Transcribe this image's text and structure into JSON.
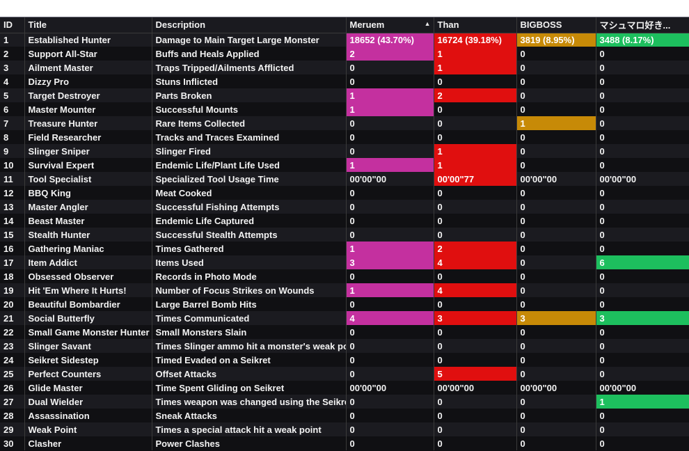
{
  "columns": [
    {
      "key": "id",
      "label": "ID"
    },
    {
      "key": "title",
      "label": "Title"
    },
    {
      "key": "desc",
      "label": "Description"
    },
    {
      "key": "p1",
      "label": "Meruem",
      "sorted": "asc"
    },
    {
      "key": "p2",
      "label": "Than"
    },
    {
      "key": "p3",
      "label": "BIGBOSS"
    },
    {
      "key": "p4",
      "label": "マシュマロ好き..."
    }
  ],
  "player_colors": {
    "p1": "#c4309f",
    "p2": "#e00f0f",
    "p3": "#c78a07",
    "p4": "#1dbf5e"
  },
  "rows": [
    {
      "id": "1",
      "title": "Established Hunter",
      "desc": "Damage to Main Target Large Monster",
      "p1": "18652 (43.70%)",
      "p2": "16724 (39.18%)",
      "p3": "3819 (8.95%)",
      "p4": "3488 (8.17%)",
      "hl": [
        "p1",
        "p2",
        "p3",
        "p4"
      ]
    },
    {
      "id": "2",
      "title": "Support All-Star",
      "desc": "Buffs and Heals Applied",
      "p1": "2",
      "p2": "1",
      "p3": "0",
      "p4": "0",
      "hl": [
        "p1",
        "p2"
      ]
    },
    {
      "id": "3",
      "title": "Ailment Master",
      "desc": "Traps Tripped/Ailments Afflicted",
      "p1": "0",
      "p2": "1",
      "p3": "0",
      "p4": "0",
      "hl": [
        "p2"
      ]
    },
    {
      "id": "4",
      "title": "Dizzy Pro",
      "desc": "Stuns Inflicted",
      "p1": "0",
      "p2": "0",
      "p3": "0",
      "p4": "0",
      "hl": []
    },
    {
      "id": "5",
      "title": "Target Destroyer",
      "desc": "Parts Broken",
      "p1": "1",
      "p2": "2",
      "p3": "0",
      "p4": "0",
      "hl": [
        "p1",
        "p2"
      ]
    },
    {
      "id": "6",
      "title": "Master Mounter",
      "desc": "Successful Mounts",
      "p1": "1",
      "p2": "0",
      "p3": "0",
      "p4": "0",
      "hl": [
        "p1"
      ]
    },
    {
      "id": "7",
      "title": "Treasure Hunter",
      "desc": "Rare Items Collected",
      "p1": "0",
      "p2": "0",
      "p3": "1",
      "p4": "0",
      "hl": [
        "p3"
      ]
    },
    {
      "id": "8",
      "title": "Field Researcher",
      "desc": "Tracks and Traces Examined",
      "p1": "0",
      "p2": "0",
      "p3": "0",
      "p4": "0",
      "hl": []
    },
    {
      "id": "9",
      "title": "Slinger Sniper",
      "desc": "Slinger Fired",
      "p1": "0",
      "p2": "1",
      "p3": "0",
      "p4": "0",
      "hl": [
        "p2"
      ]
    },
    {
      "id": "10",
      "title": "Survival Expert",
      "desc": "Endemic Life/Plant Life Used",
      "p1": "1",
      "p2": "1",
      "p3": "0",
      "p4": "0",
      "hl": [
        "p1",
        "p2"
      ]
    },
    {
      "id": "11",
      "title": "Tool Specialist",
      "desc": "Specialized Tool Usage Time",
      "p1": "00'00\"00",
      "p2": "00'00\"77",
      "p3": "00'00\"00",
      "p4": "00'00\"00",
      "hl": [
        "p2"
      ]
    },
    {
      "id": "12",
      "title": "BBQ King",
      "desc": "Meat Cooked",
      "p1": "0",
      "p2": "0",
      "p3": "0",
      "p4": "0",
      "hl": []
    },
    {
      "id": "13",
      "title": "Master Angler",
      "desc": "Successful Fishing Attempts",
      "p1": "0",
      "p2": "0",
      "p3": "0",
      "p4": "0",
      "hl": []
    },
    {
      "id": "14",
      "title": "Beast Master",
      "desc": "Endemic Life Captured",
      "p1": "0",
      "p2": "0",
      "p3": "0",
      "p4": "0",
      "hl": []
    },
    {
      "id": "15",
      "title": "Stealth Hunter",
      "desc": "Successful Stealth Attempts",
      "p1": "0",
      "p2": "0",
      "p3": "0",
      "p4": "0",
      "hl": []
    },
    {
      "id": "16",
      "title": "Gathering Maniac",
      "desc": "Times Gathered",
      "p1": "1",
      "p2": "2",
      "p3": "0",
      "p4": "0",
      "hl": [
        "p1",
        "p2"
      ]
    },
    {
      "id": "17",
      "title": "Item Addict",
      "desc": "Items Used",
      "p1": "3",
      "p2": "4",
      "p3": "0",
      "p4": "6",
      "hl": [
        "p1",
        "p2",
        "p4"
      ]
    },
    {
      "id": "18",
      "title": "Obsessed Observer",
      "desc": "Records in Photo Mode",
      "p1": "0",
      "p2": "0",
      "p3": "0",
      "p4": "0",
      "hl": []
    },
    {
      "id": "19",
      "title": "Hit 'Em Where It Hurts!",
      "desc": "Number of Focus Strikes on Wounds",
      "p1": "1",
      "p2": "4",
      "p3": "0",
      "p4": "0",
      "hl": [
        "p1",
        "p2"
      ]
    },
    {
      "id": "20",
      "title": "Beautiful Bombardier",
      "desc": "Large Barrel Bomb Hits",
      "p1": "0",
      "p2": "0",
      "p3": "0",
      "p4": "0",
      "hl": []
    },
    {
      "id": "21",
      "title": "Social Butterfly",
      "desc": "Times Communicated",
      "p1": "4",
      "p2": "3",
      "p3": "3",
      "p4": "3",
      "hl": [
        "p1",
        "p2",
        "p3",
        "p4"
      ]
    },
    {
      "id": "22",
      "title": "Small Game Monster Hunter",
      "desc": "Small Monsters Slain",
      "p1": "0",
      "p2": "0",
      "p3": "0",
      "p4": "0",
      "hl": []
    },
    {
      "id": "23",
      "title": "Slinger Savant",
      "desc": "Times Slinger ammo hit a monster's weak point",
      "p1": "0",
      "p2": "0",
      "p3": "0",
      "p4": "0",
      "hl": []
    },
    {
      "id": "24",
      "title": "Seikret Sidestep",
      "desc": "Timed Evaded on a Seikret",
      "p1": "0",
      "p2": "0",
      "p3": "0",
      "p4": "0",
      "hl": []
    },
    {
      "id": "25",
      "title": "Perfect Counters",
      "desc": "Offset Attacks",
      "p1": "0",
      "p2": "5",
      "p3": "0",
      "p4": "0",
      "hl": [
        "p2"
      ]
    },
    {
      "id": "26",
      "title": "Glide Master",
      "desc": "Time Spent Gliding on Seikret",
      "p1": "00'00\"00",
      "p2": "00'00\"00",
      "p3": "00'00\"00",
      "p4": "00'00\"00",
      "hl": []
    },
    {
      "id": "27",
      "title": "Dual Wielder",
      "desc": "Times weapon was changed using the Seikret",
      "p1": "0",
      "p2": "0",
      "p3": "0",
      "p4": "1",
      "hl": [
        "p4"
      ]
    },
    {
      "id": "28",
      "title": "Assassination",
      "desc": "Sneak Attacks",
      "p1": "0",
      "p2": "0",
      "p3": "0",
      "p4": "0",
      "hl": []
    },
    {
      "id": "29",
      "title": "Weak Point",
      "desc": "Times a special attack hit a weak point",
      "p1": "0",
      "p2": "0",
      "p3": "0",
      "p4": "0",
      "hl": []
    },
    {
      "id": "30",
      "title": "Clasher",
      "desc": "Power Clashes",
      "p1": "0",
      "p2": "0",
      "p3": "0",
      "p4": "0",
      "hl": []
    }
  ]
}
